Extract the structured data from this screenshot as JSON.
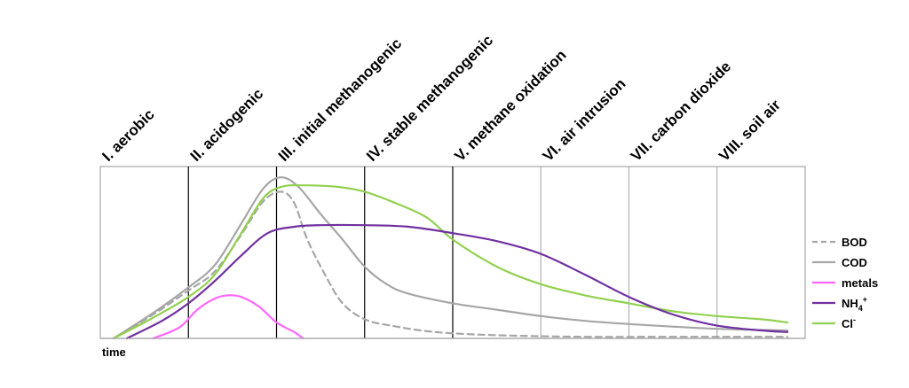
{
  "chart_data": {
    "type": "line",
    "title": "",
    "xlabel": "time",
    "ylabel": "",
    "xlim": [
      0,
      8
    ],
    "ylim": [
      0,
      100
    ],
    "grid": false,
    "legend_position": "right",
    "phases": [
      {
        "label": "I. aerobic",
        "start": 0,
        "end": 1,
        "divider_color": "#000000"
      },
      {
        "label": "II. acidogenic",
        "start": 1,
        "end": 2,
        "divider_color": "#000000"
      },
      {
        "label": "III. initial methanogenic",
        "start": 2,
        "end": 3,
        "divider_color": "#000000"
      },
      {
        "label": "IV. stable methanogenic",
        "start": 3,
        "end": 4,
        "divider_color": "#000000"
      },
      {
        "label": "V. methane oxidation",
        "start": 4,
        "end": 5,
        "divider_color": "#b0b0b0"
      },
      {
        "label": "VI. air intrusion",
        "start": 5,
        "end": 6,
        "divider_color": "#b0b0b0"
      },
      {
        "label": "VII. carbon dioxide",
        "start": 6,
        "end": 7,
        "divider_color": "#b0b0b0"
      },
      {
        "label": "VIII. soil air",
        "start": 7,
        "end": 8
      }
    ],
    "series": [
      {
        "name": "BOD",
        "sub": "",
        "sup": "",
        "color": "#a6a6a6",
        "dashed": true,
        "legend_dashed": true,
        "points": [
          [
            0.15,
            0
          ],
          [
            0.6,
            15
          ],
          [
            1.0,
            30
          ],
          [
            1.3,
            42
          ],
          [
            1.6,
            65
          ],
          [
            1.85,
            86
          ],
          [
            2.05,
            92
          ],
          [
            2.2,
            85
          ],
          [
            2.35,
            62
          ],
          [
            2.55,
            40
          ],
          [
            2.75,
            22
          ],
          [
            3.0,
            12
          ],
          [
            3.3,
            8
          ],
          [
            3.8,
            4
          ],
          [
            4.5,
            2
          ],
          [
            5.5,
            1
          ],
          [
            6.5,
            1
          ],
          [
            7.8,
            1
          ]
        ]
      },
      {
        "name": "COD",
        "sub": "",
        "sup": "",
        "color": "#a6a6a6",
        "dashed": false,
        "legend_dashed": false,
        "points": [
          [
            0.15,
            0
          ],
          [
            0.6,
            16
          ],
          [
            1.0,
            32
          ],
          [
            1.3,
            46
          ],
          [
            1.6,
            72
          ],
          [
            1.85,
            94
          ],
          [
            2.05,
            101
          ],
          [
            2.25,
            95
          ],
          [
            2.5,
            78
          ],
          [
            2.75,
            62
          ],
          [
            3.0,
            45
          ],
          [
            3.25,
            34
          ],
          [
            3.5,
            28
          ],
          [
            4.0,
            22
          ],
          [
            4.5,
            18
          ],
          [
            5.0,
            14
          ],
          [
            5.5,
            11
          ],
          [
            6.0,
            9
          ],
          [
            7.0,
            6
          ],
          [
            7.8,
            5
          ]
        ]
      },
      {
        "name": "metals",
        "sub": "",
        "sup": "",
        "color": "#ff66ff",
        "dashed": false,
        "legend_dashed": false,
        "points": [
          [
            0.6,
            0
          ],
          [
            0.9,
            7
          ],
          [
            1.1,
            18
          ],
          [
            1.3,
            25
          ],
          [
            1.45,
            27
          ],
          [
            1.6,
            26
          ],
          [
            1.8,
            20
          ],
          [
            2.0,
            10
          ],
          [
            2.2,
            4
          ],
          [
            2.3,
            0
          ]
        ]
      },
      {
        "name": "NH",
        "sub": "4",
        "sup": "+",
        "color": "#7030a0",
        "dashed": false,
        "legend_dashed": false,
        "points": [
          [
            0.3,
            0
          ],
          [
            0.7,
            11
          ],
          [
            1.0,
            22
          ],
          [
            1.3,
            36
          ],
          [
            1.6,
            52
          ],
          [
            1.9,
            66
          ],
          [
            2.2,
            70
          ],
          [
            2.5,
            71
          ],
          [
            3.0,
            71
          ],
          [
            3.5,
            70
          ],
          [
            4.0,
            66
          ],
          [
            4.5,
            61
          ],
          [
            5.0,
            53
          ],
          [
            5.5,
            40
          ],
          [
            6.0,
            26
          ],
          [
            6.5,
            15
          ],
          [
            7.0,
            8
          ],
          [
            7.5,
            5
          ],
          [
            7.8,
            4
          ]
        ]
      },
      {
        "name": "Cl",
        "sub": "",
        "sup": "-",
        "color": "#92d050",
        "dashed": false,
        "legend_dashed": false,
        "points": [
          [
            0.15,
            0
          ],
          [
            0.6,
            13
          ],
          [
            1.0,
            26
          ],
          [
            1.3,
            40
          ],
          [
            1.6,
            66
          ],
          [
            1.85,
            88
          ],
          [
            2.05,
            95
          ],
          [
            2.3,
            96
          ],
          [
            2.7,
            95
          ],
          [
            3.0,
            92
          ],
          [
            3.3,
            86
          ],
          [
            3.7,
            76
          ],
          [
            4.0,
            62
          ],
          [
            4.5,
            45
          ],
          [
            5.0,
            34
          ],
          [
            5.5,
            27
          ],
          [
            6.0,
            22
          ],
          [
            6.5,
            17
          ],
          [
            7.0,
            14
          ],
          [
            7.5,
            12
          ],
          [
            7.8,
            10
          ]
        ]
      }
    ]
  }
}
